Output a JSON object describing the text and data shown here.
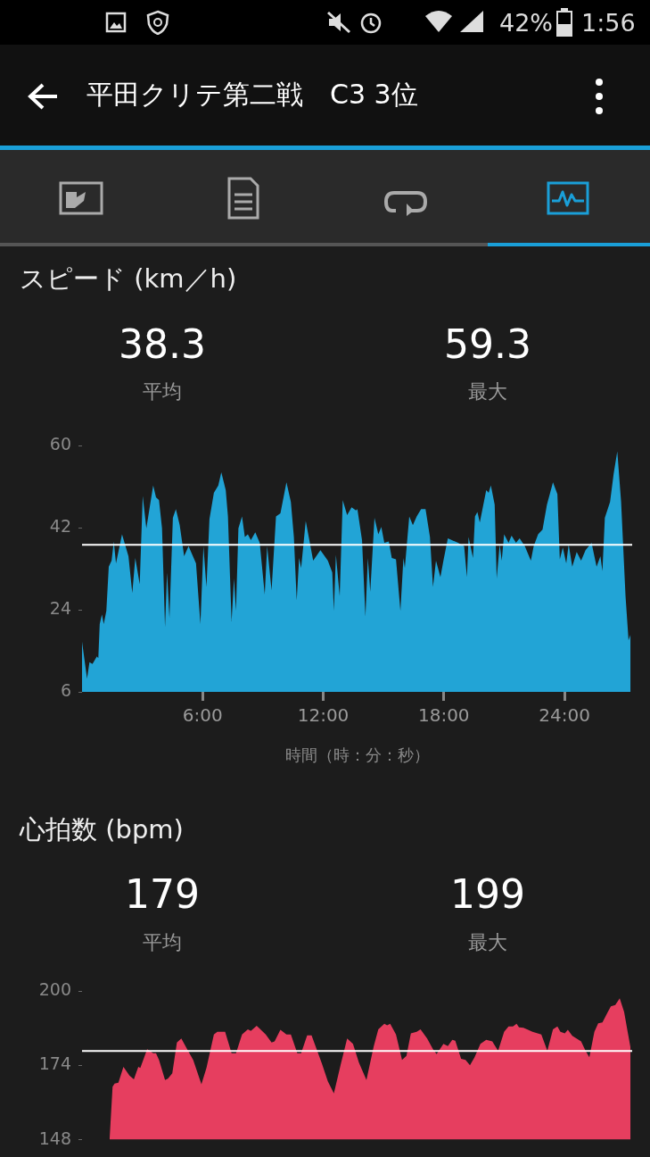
{
  "chart_data": [
    {
      "type": "area",
      "title": "スピード (km／h)",
      "xlabel": "時間（時：分：秒）",
      "annotations": [
        "38.3",
        "平均",
        "59.3",
        "最大",
        "平田クリテ第二戦　C3 3位",
        "42%",
        "1:56"
      ],
      "xlim": [
        0,
        27.37
      ],
      "xticks": [
        {
          "value": 6,
          "label": "6:00"
        },
        {
          "value": 12,
          "label": "12:00"
        },
        {
          "value": 18,
          "label": "18:00"
        },
        {
          "value": 24,
          "label": "24:00"
        }
      ],
      "ylim": [
        6,
        60
      ],
      "yticks": [
        6,
        24,
        42,
        60
      ],
      "legend": false,
      "marker": "none",
      "ref_lines": [
        {
          "axis": "y",
          "value": 38.3,
          "color": "#ffffff"
        }
      ],
      "series": [
        {
          "color": "#22a4d6",
          "x": [
            0,
            0.25,
            0.37,
            0.52,
            0.74,
            0.81,
            0.88,
            0.99,
            1.08,
            1.21,
            1.33,
            1.47,
            1.58,
            1.69,
            1.99,
            2.31,
            2.5,
            2.65,
            2.87,
            3.02,
            3.2,
            3.54,
            3.68,
            3.83,
            3.98,
            4.13,
            4.23,
            4.35,
            4.52,
            4.67,
            4.86,
            5.08,
            5.3,
            5.67,
            5.89,
            6.04,
            6.19,
            6.34,
            6.56,
            6.78,
            6.93,
            7.15,
            7.26,
            7.44,
            7.56,
            7.66,
            7.78,
            7.96,
            8.1,
            8.25,
            8.4,
            8.62,
            8.84,
            9.09,
            9.21,
            9.43,
            9.65,
            9.87,
            10.17,
            10.39,
            10.54,
            10.68,
            10.8,
            10.9,
            11.13,
            11.5,
            11.86,
            12.23,
            12.45,
            12.53,
            12.63,
            12.82,
            12.97,
            13.19,
            13.41,
            13.63,
            13.7,
            13.93,
            14.1,
            14.22,
            14.34,
            14.55,
            14.74,
            14.89,
            15.04,
            15.26,
            15.41,
            15.62,
            15.84,
            15.99,
            16.06,
            16.28,
            16.46,
            16.65,
            16.87,
            17.09,
            17.31,
            17.46,
            17.61,
            17.83,
            17.98,
            18.2,
            18.71,
            19.01,
            19.15,
            19.23,
            19.45,
            19.55,
            19.67,
            19.79,
            20.11,
            20.23,
            20.34,
            20.53,
            20.63,
            20.78,
            20.88,
            21,
            21.22,
            21.37,
            21.59,
            21.77,
            22.03,
            22.33,
            22.47,
            22.69,
            22.91,
            23.13,
            23.43,
            23.65,
            23.77,
            23.92,
            24.09,
            24.21,
            24.39,
            24.61,
            24.83,
            25.05,
            25.35,
            25.6,
            25.79,
            25.89,
            26.01,
            26.27,
            26.45,
            26.63,
            26.82,
            27.04,
            27.19,
            27.29
          ],
          "values": [
            17,
            8.9,
            12.5,
            12.1,
            13.8,
            13.4,
            20.9,
            23,
            20.9,
            23.8,
            33.5,
            34.8,
            39,
            34.2,
            40.6,
            35.8,
            27.7,
            35.4,
            29.6,
            49,
            41.9,
            51.3,
            48.7,
            48.1,
            41.9,
            20.2,
            32.2,
            22.2,
            44.2,
            46.1,
            42.6,
            35.8,
            38,
            34.2,
            20.9,
            38,
            29,
            43.9,
            49.7,
            51.3,
            54.2,
            50.3,
            44.5,
            21.5,
            30.9,
            23.8,
            41.9,
            44.5,
            40,
            40.6,
            39.3,
            41,
            38.7,
            27.4,
            38,
            28.3,
            44.5,
            45.2,
            52,
            47.7,
            40,
            26.1,
            35.4,
            33.2,
            43.5,
            34.8,
            37.1,
            34.8,
            32.2,
            23.8,
            36.1,
            27,
            48.1,
            44.8,
            46.5,
            45.8,
            46.1,
            39.3,
            22.5,
            35.4,
            28,
            44.2,
            40.6,
            42.2,
            38.7,
            39,
            35.4,
            35.1,
            23.8,
            35.4,
            33.2,
            44.5,
            42.6,
            44.5,
            46.1,
            46.1,
            40,
            29,
            34.8,
            31.2,
            34.8,
            39.7,
            38.7,
            38,
            31.2,
            40,
            35.4,
            44.5,
            45.5,
            43.2,
            50.3,
            49.7,
            51.3,
            47.1,
            30.9,
            38.4,
            34.8,
            40.6,
            38.7,
            40.3,
            38.7,
            39.7,
            38,
            34.8,
            38,
            40.6,
            41.6,
            47.1,
            52,
            49.4,
            35.1,
            37.7,
            34.2,
            38.4,
            33.5,
            36.7,
            34.8,
            37.1,
            38.7,
            33.5,
            35.8,
            32.5,
            44.2,
            47.7,
            53.9,
            58.8,
            47.7,
            27,
            17.3,
            18.6
          ]
        }
      ]
    },
    {
      "type": "area",
      "title": "心拍数 (bpm)",
      "annotations": [
        "179",
        "平均",
        "199",
        "最大"
      ],
      "xlim": [
        0,
        27.37
      ],
      "ylim": [
        148,
        200
      ],
      "yticks": [
        148,
        174,
        200
      ],
      "tick_labels": "y",
      "legend": false,
      "marker": "none",
      "ref_lines": [
        {
          "axis": "y",
          "value": 179,
          "color": "#ffffff"
        }
      ],
      "series": [
        {
          "color": "#e63e5f",
          "x": [
            1.37,
            1.52,
            1.62,
            1.81,
            2.06,
            2.36,
            2.58,
            2.8,
            2.9,
            3.24,
            3.54,
            3.68,
            3.83,
            4.13,
            4.27,
            4.49,
            4.72,
            4.94,
            5.23,
            5.53,
            5.94,
            6.19,
            6.56,
            6.73,
            7.12,
            7.44,
            7.66,
            7.96,
            8.25,
            8.4,
            8.69,
            9.14,
            9.43,
            9.58,
            9.87,
            10.17,
            10.39,
            10.71,
            10.9,
            11.2,
            11.42,
            11.94,
            12.23,
            12.53,
            12.89,
            13.19,
            13.48,
            13.78,
            14.15,
            14.51,
            14.74,
            15.04,
            15.18,
            15.33,
            15.62,
            15.92,
            16.14,
            16.36,
            16.65,
            16.84,
            17.17,
            17.46,
            17.64,
            17.98,
            18.2,
            18.42,
            18.57,
            18.86,
            19.08,
            19.3,
            19.53,
            19.82,
            20.11,
            20.41,
            20.7,
            21,
            21.22,
            21.44,
            21.62,
            21.74,
            21.96,
            22.19,
            22.41,
            22.85,
            23.15,
            23.43,
            23.65,
            23.8,
            24.02,
            24.17,
            24.39,
            24.83,
            25.05,
            25.24,
            25.49,
            25.68,
            25.89,
            26.16,
            26.31,
            26.53,
            26.75,
            26.97,
            27.16,
            27.29
          ],
          "values": [
            148,
            166.5,
            167.6,
            167.9,
            173.5,
            170.4,
            169.1,
            173.5,
            173.1,
            179.6,
            178.2,
            178.2,
            175.9,
            168.9,
            169.3,
            171.2,
            182,
            183.4,
            179.6,
            175.9,
            167.4,
            173.1,
            184.8,
            185.7,
            185.7,
            178.2,
            178.2,
            184.8,
            186.6,
            186,
            187.8,
            184.8,
            182,
            182.4,
            186.4,
            184.8,
            184.8,
            178.2,
            178.2,
            184.5,
            184.5,
            174.5,
            168.4,
            164.2,
            174.9,
            183.4,
            181.5,
            174.9,
            168.9,
            180.6,
            186.6,
            188.5,
            188,
            188.5,
            184.8,
            175.9,
            177.3,
            185.2,
            185.7,
            186.6,
            183.4,
            179.6,
            177.9,
            181.5,
            180.7,
            182.9,
            182.6,
            176.3,
            175.9,
            174,
            176.8,
            181.5,
            182.9,
            182.4,
            179.1,
            185.7,
            187.6,
            187.6,
            188.5,
            187.3,
            187.1,
            186.4,
            185.7,
            184.8,
            179.1,
            186.6,
            187.6,
            185.7,
            185.2,
            186.4,
            184.3,
            182.4,
            179.1,
            176.8,
            185.7,
            188.7,
            189,
            192.7,
            194.6,
            195.1,
            197.4,
            192.7,
            185.2,
            180.1
          ]
        }
      ]
    }
  ]
}
